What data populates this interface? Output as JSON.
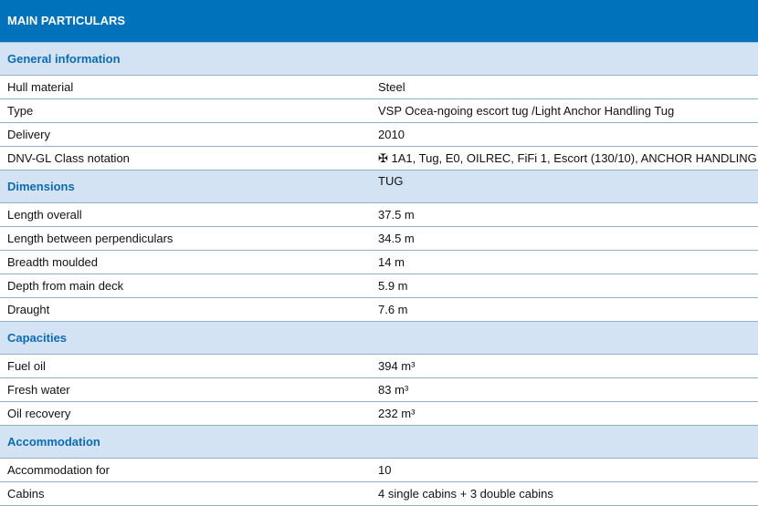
{
  "title": "MAIN PARTICULARS",
  "sections": [
    {
      "heading": "General information",
      "rows": [
        {
          "label": "Hull material",
          "value": "Steel"
        },
        {
          "label": "Type",
          "value": "VSP Ocea-ngoing escort tug /Light Anchor Handling Tug"
        },
        {
          "label": "Delivery",
          "value": "2010"
        },
        {
          "label": "DNV-GL Class notation",
          "value": "✠ 1A1, Tug, E0, OILREC, FiFi 1, Escort (130/10), ANCHOR HANDLING TUG"
        }
      ]
    },
    {
      "heading": "Dimensions",
      "rows": [
        {
          "label": "Length overall",
          "value": "37.5 m"
        },
        {
          "label": "Length between perpendiculars",
          "value": "34.5 m"
        },
        {
          "label": "Breadth moulded",
          "value": "14 m"
        },
        {
          "label": "Depth from main deck",
          "value": "5.9 m"
        },
        {
          "label": "Draught",
          "value": "7.6 m"
        }
      ]
    },
    {
      "heading": "Capacities",
      "rows": [
        {
          "label": "Fuel oil",
          "value": "394 m³"
        },
        {
          "label": "Fresh water",
          "value": "83 m³"
        },
        {
          "label": "Oil recovery",
          "value": "232 m³"
        }
      ]
    },
    {
      "heading": "Accommodation",
      "rows": [
        {
          "label": "Accommodation for",
          "value": "10"
        },
        {
          "label": "Cabins",
          "value": "4 single cabins + 3 double cabins"
        }
      ]
    }
  ]
}
